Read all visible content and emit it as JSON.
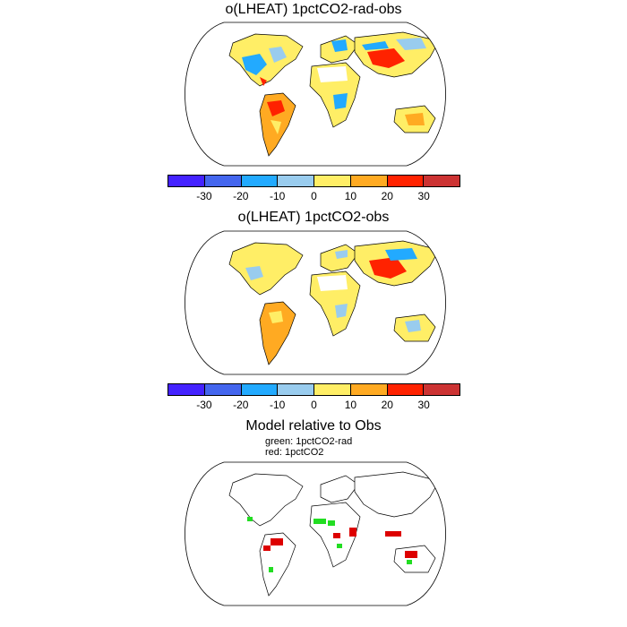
{
  "panels": [
    {
      "title": "o(LHEAT) 1pctCO2-rad-obs"
    },
    {
      "title": "o(LHEAT) 1pctCO2-obs"
    },
    {
      "title": "Model relative to Obs",
      "legend": [
        "green: 1pctCO2-rad",
        "red: 1pctCO2"
      ]
    }
  ],
  "colorbar": {
    "colors": [
      "#4422ff",
      "#4466ee",
      "#22aaff",
      "#99ccee",
      "#ffee66",
      "#ffaa22",
      "#ff2200",
      "#cc3333"
    ],
    "labels": [
      "-30",
      "-20",
      "-10",
      "0",
      "10",
      "20",
      "30"
    ]
  },
  "bottom_colors": {
    "green": "#22dd22",
    "red": "#dd0000"
  }
}
